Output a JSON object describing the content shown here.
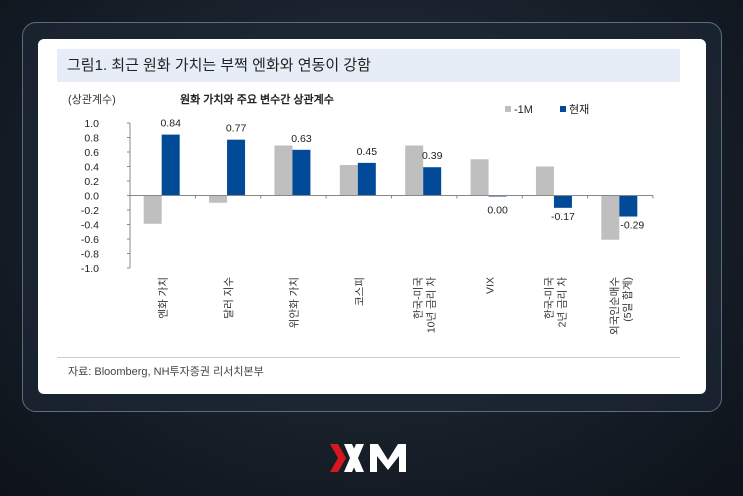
{
  "title": "그림1. 최근 원화 가치는 부쩍 엔화와 연동이 강함",
  "source": "자료: Bloomberg, NH투자증권 리서치본부",
  "logo": "XM",
  "chart_data": {
    "type": "bar",
    "title": "원화 가치와 주요 변수간 상관계수",
    "ylabel": "(상관계수)",
    "ylim": [
      -1.0,
      1.0
    ],
    "yticks": [
      "1.0",
      "0.8",
      "0.6",
      "0.4",
      "0.2",
      "0.0",
      "-0.2",
      "-0.4",
      "-0.6",
      "-0.8",
      "-1.0"
    ],
    "categories": [
      [
        "엔화 가치"
      ],
      [
        "달러 지수"
      ],
      [
        "위안화 가치"
      ],
      [
        "코스피"
      ],
      [
        "한국-미국",
        "10년 금리 차"
      ],
      [
        "VIX"
      ],
      [
        "한국-미국",
        "2년 금리 차"
      ],
      [
        "외국인순매수",
        "(5일 합계)"
      ]
    ],
    "series": [
      {
        "name": "-1M",
        "color": "#bfbfbf",
        "values": [
          -0.39,
          -0.1,
          0.69,
          0.42,
          0.69,
          0.5,
          0.4,
          -0.61
        ]
      },
      {
        "name": "현재",
        "color": "#004a98",
        "values": [
          0.84,
          0.77,
          0.63,
          0.45,
          0.39,
          0.0,
          -0.17,
          -0.29
        ],
        "labels": [
          "0.84",
          "0.77",
          "0.63",
          "0.45",
          "0.39",
          "0.00",
          "-0.17",
          "-0.29"
        ]
      }
    ],
    "legend": "top-right"
  }
}
